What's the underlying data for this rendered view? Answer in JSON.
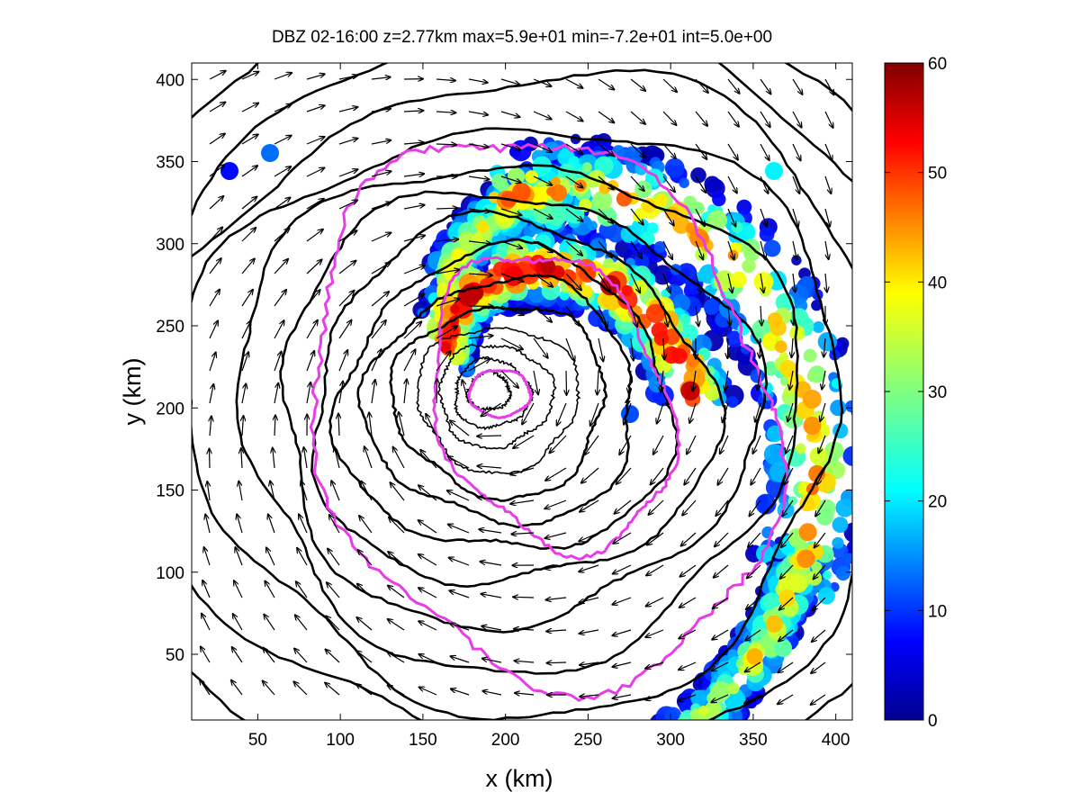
{
  "chart_data": {
    "type": "heatmap",
    "title": "DBZ 02-16:00 z=2.77km max=5.9e+01 min=-7.2e+01 int=5.0e+00",
    "xlabel": "x (km)",
    "ylabel": "y (km)",
    "xlim": [
      10,
      410
    ],
    "ylim": [
      10,
      410
    ],
    "x_ticks": [
      50,
      100,
      150,
      200,
      250,
      300,
      350,
      400
    ],
    "y_ticks": [
      50,
      100,
      150,
      200,
      250,
      300,
      350,
      400
    ],
    "grid": false,
    "colorbar": {
      "range": [
        0,
        60
      ],
      "ticks": [
        0,
        10,
        20,
        30,
        40,
        50,
        60
      ],
      "colormap": "jet",
      "position": "right"
    },
    "storm_center": [
      190,
      210
    ],
    "overlays": {
      "pressure_contours": "black",
      "reflectivity_contour": "#e83ce8",
      "wind_vectors": "black"
    }
  }
}
